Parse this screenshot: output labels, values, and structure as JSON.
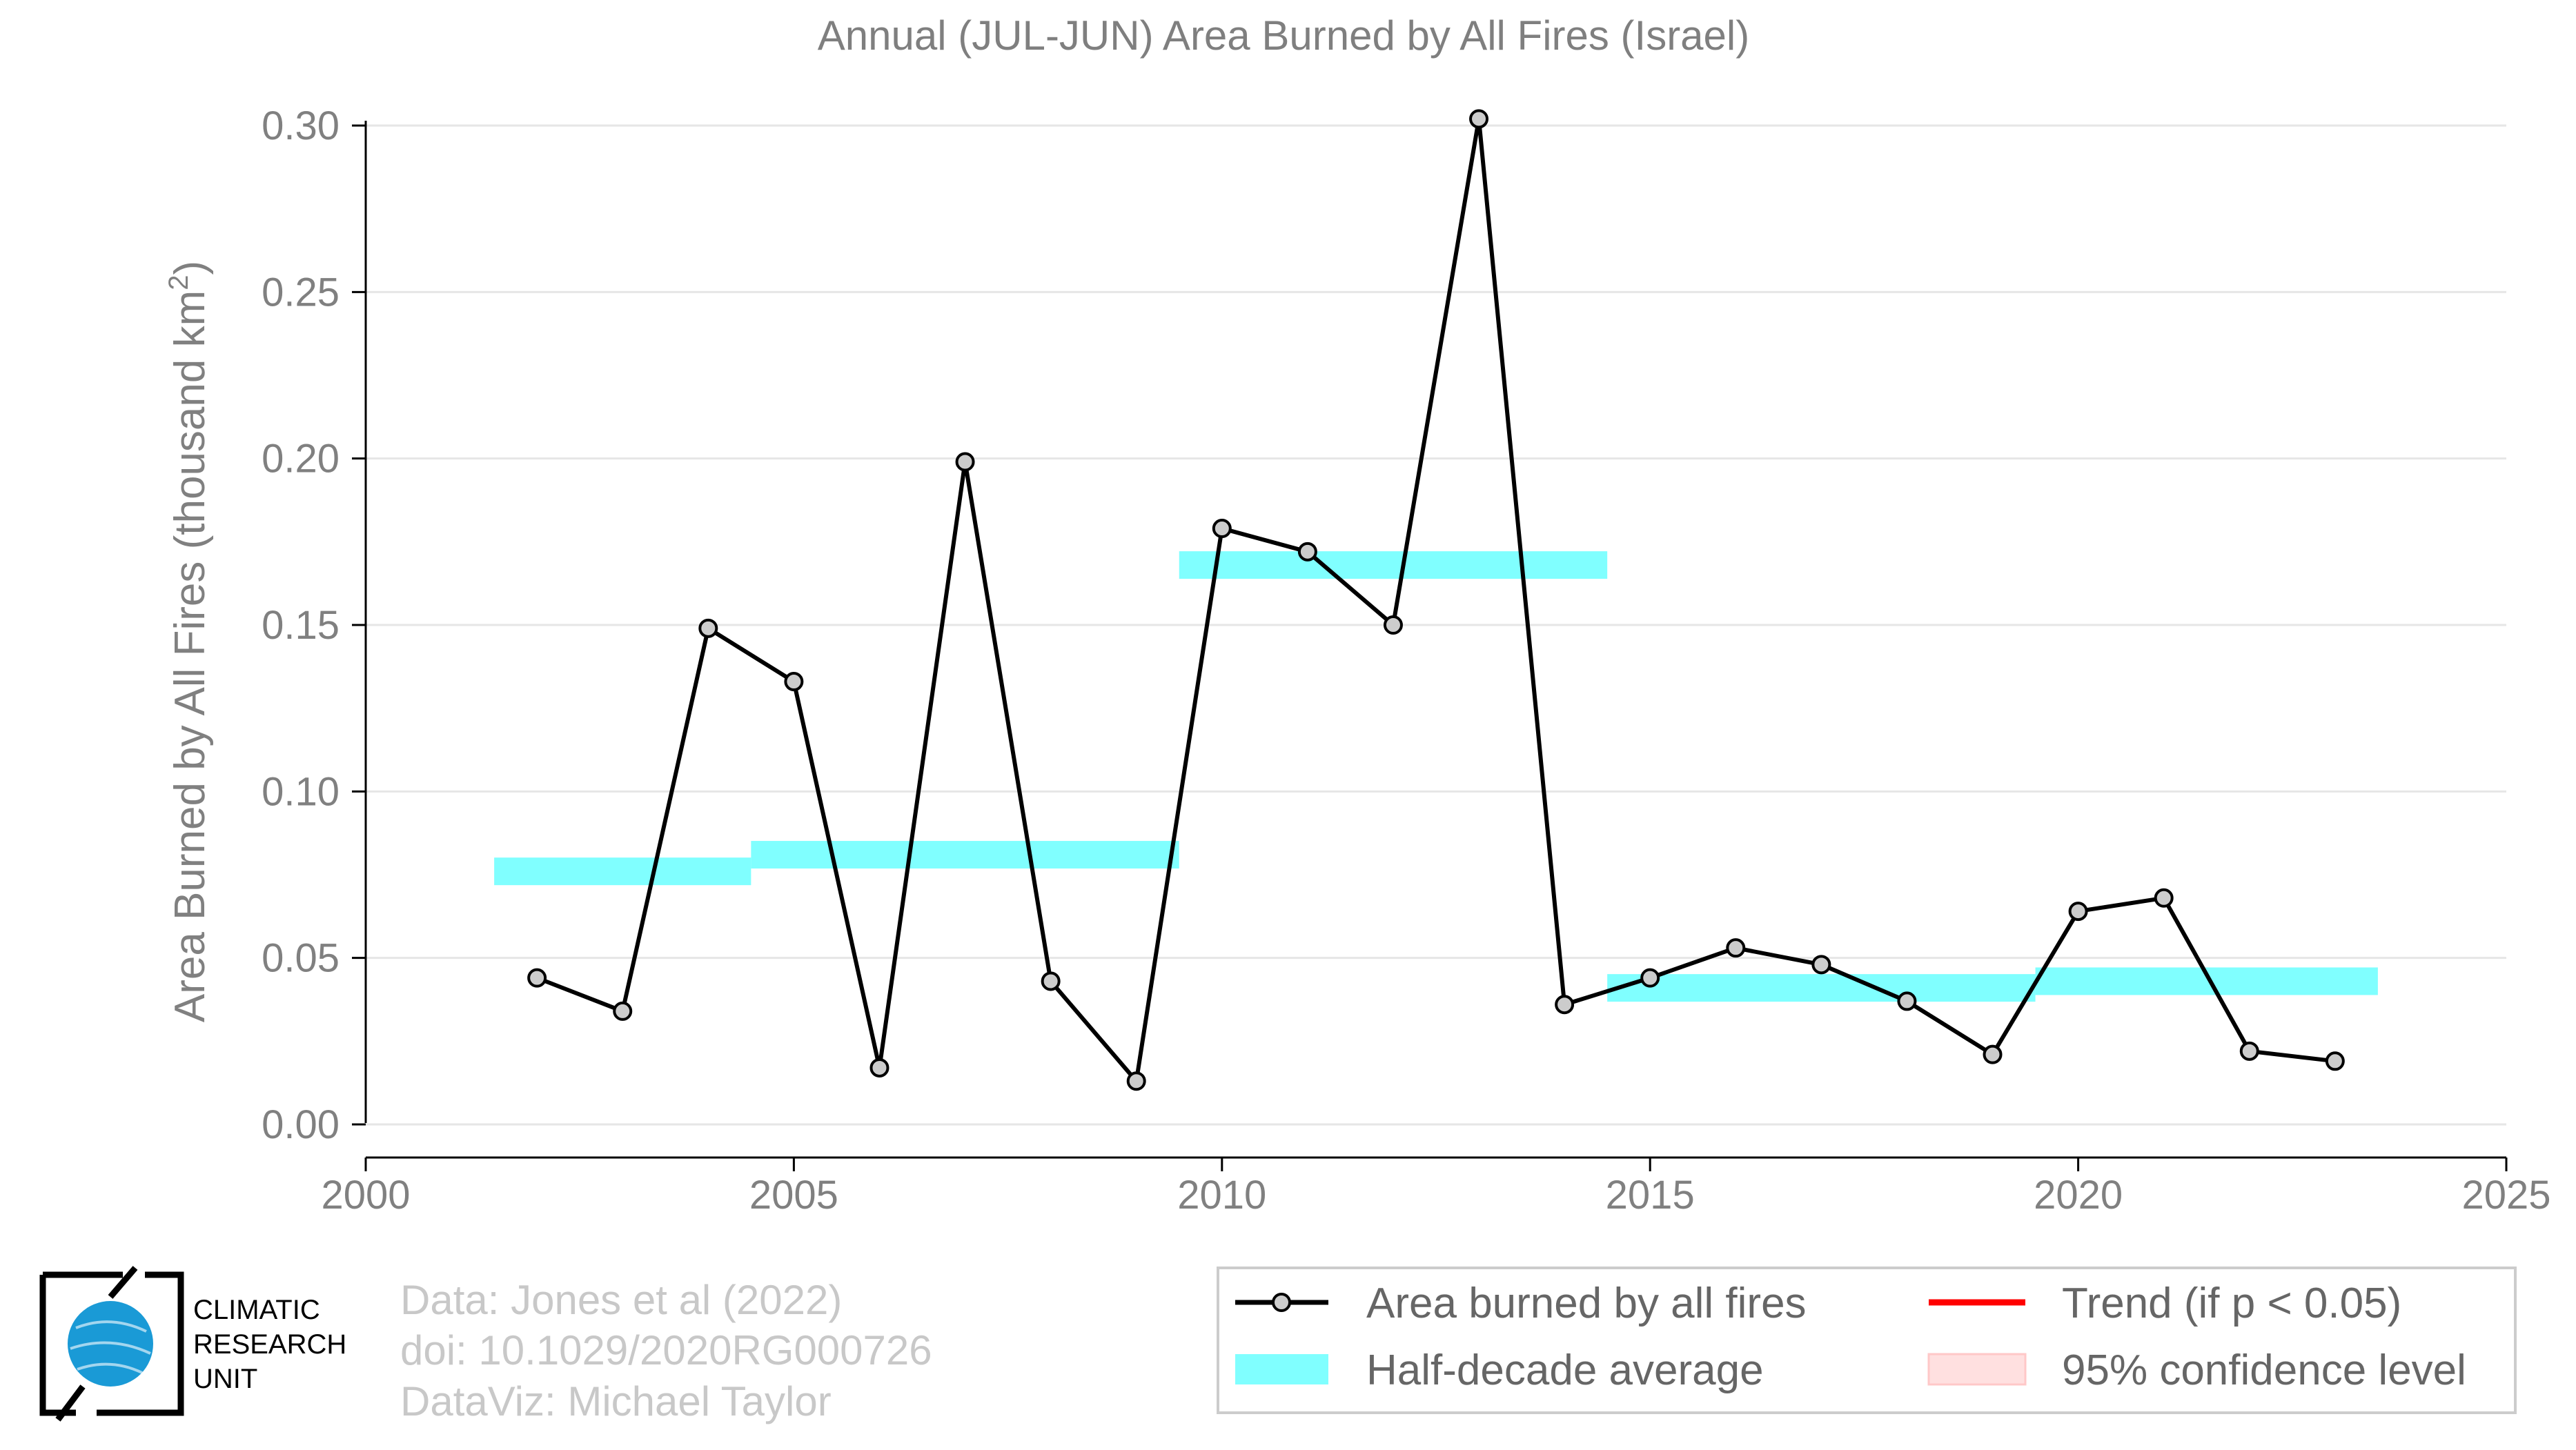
{
  "chart_data": {
    "type": "line",
    "title": "Annual (JUL-JUN) Area Burned by All Fires (Israel)",
    "ylabel": "Area Burned by All Fires (thousand km",
    "ylabel_sup": "2",
    "ylabel_close": ")",
    "xlim": [
      2000,
      2025
    ],
    "ylim": [
      0,
      0.3
    ],
    "x_ticks": [
      2000,
      2005,
      2010,
      2015,
      2020,
      2025
    ],
    "y_ticks": [
      0.0,
      0.05,
      0.1,
      0.15,
      0.2,
      0.25,
      0.3
    ],
    "y_tick_labels": [
      "0.00",
      "0.05",
      "0.10",
      "0.15",
      "0.20",
      "0.25",
      "0.30"
    ],
    "grid": true,
    "series": [
      {
        "name": "Area burned by all fires",
        "color": "#000000",
        "marker_fill": "#cccccc",
        "x": [
          2002,
          2003,
          2004,
          2005,
          2006,
          2007,
          2008,
          2009,
          2010,
          2011,
          2012,
          2013,
          2014,
          2015,
          2016,
          2017,
          2018,
          2019,
          2020,
          2021,
          2022,
          2023
        ],
        "y": [
          0.044,
          0.034,
          0.149,
          0.133,
          0.017,
          0.199,
          0.043,
          0.013,
          0.179,
          0.172,
          0.15,
          0.302,
          0.036,
          0.044,
          0.053,
          0.048,
          0.037,
          0.021,
          0.064,
          0.068,
          0.022,
          0.019
        ]
      }
    ],
    "half_decade_average": {
      "name": "Half-decade average",
      "color": "#80ffff",
      "segments": [
        {
          "x_start": 2001.5,
          "x_end": 2004.5,
          "value": 0.076
        },
        {
          "x_start": 2004.5,
          "x_end": 2009.5,
          "value": 0.081
        },
        {
          "x_start": 2009.5,
          "x_end": 2014.5,
          "value": 0.168
        },
        {
          "x_start": 2014.5,
          "x_end": 2019.5,
          "value": 0.041
        },
        {
          "x_start": 2019.5,
          "x_end": 2023.5,
          "value": 0.043
        }
      ]
    },
    "legend": {
      "placement": "bottom-right",
      "items": [
        {
          "label": "Area burned by all fires",
          "kind": "line-marker",
          "color": "#000000"
        },
        {
          "label": "Trend (if p < 0.05)",
          "kind": "line",
          "color": "#ff0000"
        },
        {
          "label": "Half-decade average",
          "kind": "band",
          "color": "#80ffff"
        },
        {
          "label": "95% confidence level",
          "kind": "band",
          "color": "#ffe0e0"
        }
      ]
    }
  },
  "credits": {
    "line1": "Data: Jones et al (2022)",
    "line2": "doi: 10.1029/2020RG000726",
    "line3": "DataViz: Michael Taylor"
  },
  "logo": {
    "line1": "CLIMATIC",
    "line2": "RESEARCH",
    "line3": "UNIT"
  }
}
